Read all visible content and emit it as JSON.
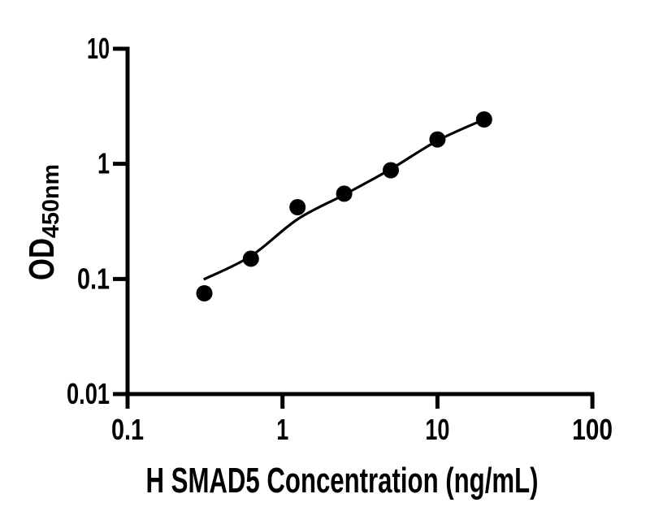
{
  "figure": {
    "background_color": "#ffffff",
    "ink_color": "#000000"
  },
  "chart_data": {
    "type": "scatter",
    "title": "",
    "xlabel": "H SMAD5 Concentration (ng/mL)",
    "ylabel_main": "OD",
    "ylabel_subscript": "450nm",
    "x_scale": "log10",
    "y_scale": "log10",
    "xlim": [
      0.1,
      100
    ],
    "ylim": [
      0.01,
      10
    ],
    "x_tick_values": [
      0.1,
      1,
      10,
      100
    ],
    "x_tick_labels": [
      "0.1",
      "1",
      "10",
      "100"
    ],
    "y_tick_values": [
      0.01,
      0.1,
      1,
      10
    ],
    "y_tick_labels": [
      "0.01",
      "0.1",
      "1",
      "10"
    ],
    "grid": false,
    "legend": "none",
    "series": [
      {
        "name": "standard curve data points",
        "marker": "filled-circle",
        "color": "#000000",
        "x": [
          0.313,
          0.625,
          1.25,
          2.5,
          5,
          10,
          20
        ],
        "y": [
          0.075,
          0.15,
          0.42,
          0.55,
          0.88,
          1.63,
          2.43
        ]
      }
    ],
    "fit_curve": {
      "name": "fitted standard curve line",
      "color": "#000000",
      "x": [
        0.31,
        0.625,
        1.25,
        2.5,
        5,
        10,
        20
      ],
      "y": [
        0.099,
        0.158,
        0.33,
        0.54,
        0.9,
        1.59,
        2.43
      ]
    }
  }
}
